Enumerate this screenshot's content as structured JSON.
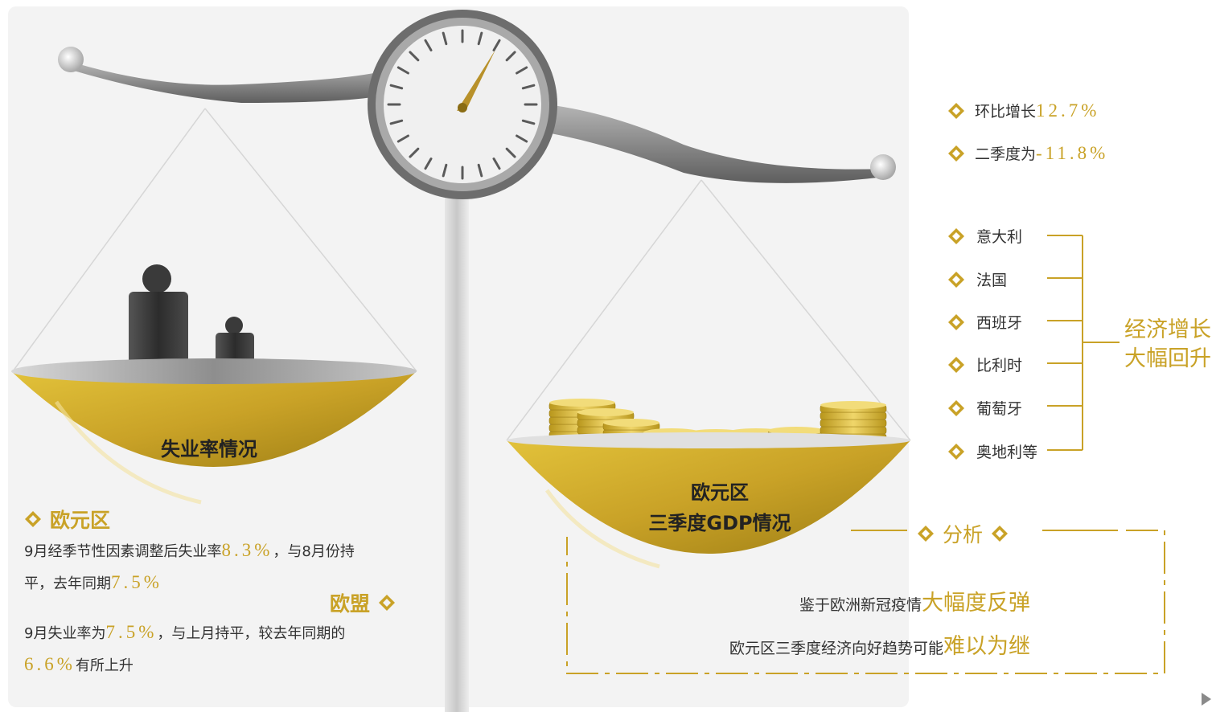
{
  "colors": {
    "gold": "#c9a227",
    "dark_gold": "#a88a1a",
    "weight": "#3a3a3a",
    "bg_panel": "#f4f4f4",
    "pole": "#dcdcdc"
  },
  "left_pan": {
    "title": "失业率情况"
  },
  "right_pan": {
    "title_line1": "欧元区",
    "title_line2": "三季度GDP情况"
  },
  "quarterly": [
    {
      "label": "环比增长",
      "value": "12.7%"
    },
    {
      "label": "二季度为",
      "value": "-11.8%"
    }
  ],
  "countries": [
    "意大利",
    "法国",
    "西班牙",
    "比利时",
    "葡萄牙",
    "奥地利等"
  ],
  "countries_bracket_label_line1": "经济增长",
  "countries_bracket_label_line2": "大幅回升",
  "eurozone": {
    "heading": "欧元区",
    "text1": "9月经季节性因素调整后失业率",
    "value1": "8.3%",
    "text2": "，与8月份持",
    "text3": "平，去年同期",
    "value2": "7.5%"
  },
  "eu": {
    "heading": "欧盟",
    "text1": "9月失业率为",
    "value1": "7.5%",
    "text2": "，与上月持平，较去年同期的",
    "value2": "6.6%",
    "text3": "有所上升"
  },
  "analysis": {
    "heading": "分析",
    "line1_text": "鉴于欧洲新冠疫情",
    "line1_highlight": "大幅度反弹",
    "line2_text": "欧元区三季度经济向好趋势可能",
    "line2_highlight": "难以为继"
  }
}
